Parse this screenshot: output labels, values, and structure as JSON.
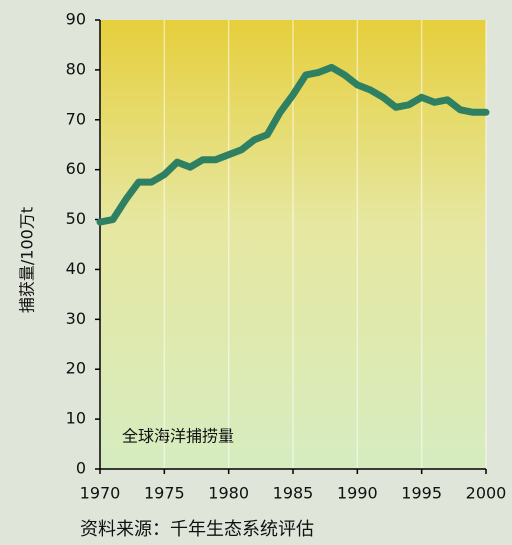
{
  "chart_data": {
    "type": "line",
    "y_label": "捕获量/100万t",
    "annotation": "全球海洋捕捞量",
    "source": "资料来源：千年生态系统评估",
    "x": [
      1970,
      1971,
      1972,
      1973,
      1974,
      1975,
      1976,
      1977,
      1978,
      1979,
      1980,
      1981,
      1982,
      1983,
      1984,
      1985,
      1986,
      1987,
      1988,
      1989,
      1990,
      1991,
      1992,
      1993,
      1994,
      1995,
      1996,
      1997,
      1998,
      1999,
      2000
    ],
    "series": [
      {
        "name": "全球海洋捕捞量",
        "color": "#2f8062",
        "values": [
          49.5,
          50,
          54,
          57.5,
          57.5,
          59,
          61.5,
          60.5,
          62,
          62,
          63,
          64,
          66,
          67,
          71.5,
          75,
          79,
          79.5,
          80.5,
          79,
          77,
          76,
          74.5,
          72.5,
          73,
          74.5,
          73.5,
          74,
          72,
          71.5,
          71.5
        ]
      }
    ],
    "xlim": [
      1970,
      2000
    ],
    "xticks": [
      1970,
      1975,
      1980,
      1985,
      1990,
      1995,
      2000
    ],
    "ylim": [
      0,
      90
    ],
    "yticks": [
      0,
      10,
      20,
      30,
      40,
      50,
      60,
      70,
      80,
      90
    ],
    "grid": "x"
  }
}
